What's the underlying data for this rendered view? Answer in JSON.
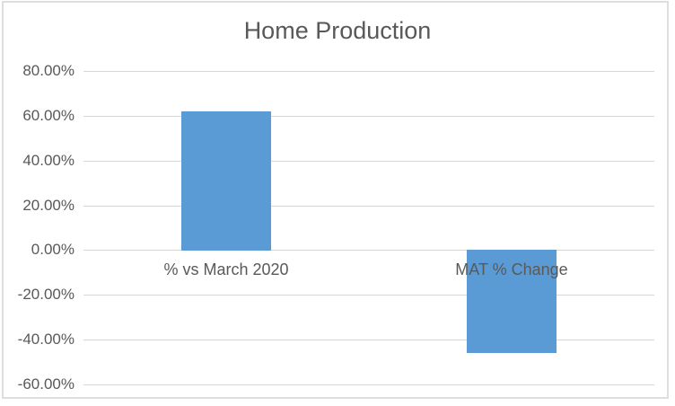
{
  "chart_data": {
    "type": "bar",
    "title": "Home Production",
    "categories": [
      "% vs March 2020",
      "MAT % Change"
    ],
    "values": [
      62,
      -46
    ],
    "unit": "percent",
    "xlabel": "",
    "ylabel": "",
    "ylim": [
      -60,
      80
    ],
    "grid": true,
    "legend": "none",
    "yticks": [
      {
        "value": 80,
        "label": "80.00%"
      },
      {
        "value": 60,
        "label": "60.00%"
      },
      {
        "value": 40,
        "label": "40.00%"
      },
      {
        "value": 20,
        "label": "20.00%"
      },
      {
        "value": 0,
        "label": "0.00%"
      },
      {
        "value": -20,
        "label": "-20.00%"
      },
      {
        "value": -40,
        "label": "-40.00%"
      },
      {
        "value": -60,
        "label": "-60.00%"
      }
    ],
    "colors": {
      "bar": "#5B9BD5",
      "gridline": "#D6D6D6",
      "text": "#595959",
      "frame_border": "#DEDEDE",
      "background": "#FFFFFF"
    }
  }
}
